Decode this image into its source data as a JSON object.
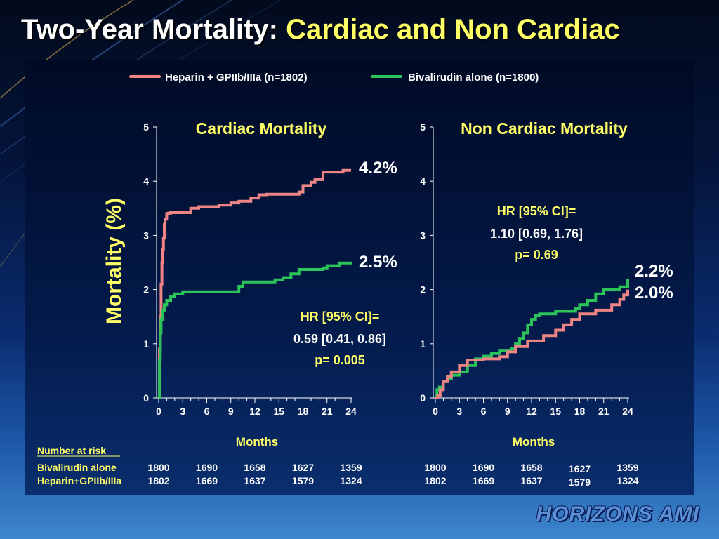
{
  "slide": {
    "title_main": "Two-Year Mortality:",
    "title_accent": "Cardiac and Non Cardiac",
    "logo": "HORIZONS AMI"
  },
  "colors": {
    "heparin": "#ee8484",
    "bivalirudin": "#2cc45a",
    "accent_text": "#ffff66",
    "axis": "#ffffff"
  },
  "legend": [
    {
      "label": "Heparin + GPIIb/IIIa (n=1802)",
      "color": "#ee8484"
    },
    {
      "label": "Bivalirudin alone (n=1800)",
      "color": "#2cc45a"
    }
  ],
  "y_axis_label": "Mortality (%)",
  "x_axis_label": "Months",
  "risk_table": {
    "title": "Number at risk",
    "row_labels": [
      "Bivalirudin alone",
      "Heparin+GPIIb/IIIa"
    ]
  },
  "chart_data": [
    {
      "type": "line",
      "step": true,
      "title": "Cardiac Mortality",
      "xlabel": "Months",
      "ylabel": "Mortality (%)",
      "xlim": [
        0,
        24
      ],
      "ylim": [
        0,
        5
      ],
      "xticks": [
        0,
        3,
        6,
        9,
        12,
        15,
        18,
        21,
        24
      ],
      "yticks": [
        0,
        1,
        2,
        3,
        4,
        5
      ],
      "series": [
        {
          "name": "Heparin + GPIIb/IIIa (n=1802)",
          "color": "#ee8484",
          "end_label": "4.2%",
          "x": [
            0,
            0.1,
            0.2,
            0.3,
            0.4,
            0.5,
            0.6,
            0.7,
            0.8,
            1.0,
            1.2,
            1.5,
            2.0,
            3.0,
            4.0,
            5.0,
            7.5,
            9.0,
            10.0,
            11.5,
            12.5,
            13.5,
            17.5,
            18.0,
            19.0,
            19.5,
            20.5,
            23.0,
            24.0
          ],
          "y": [
            0,
            0.9,
            1.5,
            2.1,
            2.5,
            2.75,
            2.95,
            3.2,
            3.3,
            3.4,
            3.41,
            3.42,
            3.42,
            3.42,
            3.5,
            3.53,
            3.56,
            3.6,
            3.63,
            3.69,
            3.75,
            3.76,
            3.8,
            3.92,
            3.98,
            4.03,
            4.17,
            4.2,
            4.2
          ]
        },
        {
          "name": "Bivalirudin alone (n=1800)",
          "color": "#2cc45a",
          "end_label": "2.5%",
          "x": [
            0,
            0.1,
            0.2,
            0.3,
            0.5,
            0.7,
            1.0,
            1.5,
            2.0,
            3.0,
            10.0,
            10.5,
            14.5,
            15.5,
            16.5,
            17.5,
            20.5,
            21.0,
            22.5,
            24.0
          ],
          "y": [
            0,
            0.7,
            1.2,
            1.45,
            1.62,
            1.72,
            1.8,
            1.87,
            1.92,
            1.96,
            2.06,
            2.14,
            2.18,
            2.22,
            2.29,
            2.37,
            2.4,
            2.44,
            2.49,
            2.5
          ]
        }
      ],
      "annotation": {
        "line1": "HR [95% CI]=",
        "line2": "0.59 [0.41, 0.86]",
        "line3": "p= 0.005"
      },
      "risk_rows": [
        [
          "1800",
          "1690",
          "1658",
          "1627",
          "1359"
        ],
        [
          "1802",
          "1669",
          "1637",
          "1579",
          "1324"
        ]
      ]
    },
    {
      "type": "line",
      "step": true,
      "title": "Non Cardiac Mortality",
      "xlabel": "Months",
      "ylabel": "Mortality (%)",
      "xlim": [
        0,
        24
      ],
      "ylim": [
        0,
        5
      ],
      "xticks": [
        0,
        3,
        6,
        9,
        12,
        15,
        18,
        21,
        24
      ],
      "yticks": [
        0,
        1,
        2,
        3,
        4,
        5
      ],
      "series": [
        {
          "name": "Bivalirudin alone (n=1800)",
          "color": "#2cc45a",
          "end_label": "2.2%",
          "x": [
            0,
            0.2,
            0.5,
            1.0,
            1.5,
            2.0,
            3.0,
            4.0,
            5.0,
            6.0,
            7.0,
            8.0,
            9.5,
            10.0,
            10.5,
            11.0,
            11.5,
            12.0,
            12.5,
            13.0,
            15.0,
            17.5,
            18.0,
            19.0,
            20.0,
            21.0,
            23.0,
            24.0
          ],
          "y": [
            0,
            0.15,
            0.2,
            0.3,
            0.35,
            0.42,
            0.48,
            0.6,
            0.72,
            0.77,
            0.82,
            0.88,
            0.92,
            1.0,
            1.1,
            1.2,
            1.35,
            1.45,
            1.52,
            1.55,
            1.6,
            1.65,
            1.72,
            1.8,
            1.92,
            2.0,
            2.05,
            2.2
          ]
        },
        {
          "name": "Heparin + GPIIb/IIIa (n=1802)",
          "color": "#ee8484",
          "end_label": "2.0%",
          "x": [
            0,
            0.3,
            0.6,
            1.0,
            1.5,
            2.0,
            3.0,
            4.0,
            6.0,
            8.0,
            9.0,
            10.0,
            11.5,
            13.5,
            15.0,
            16.0,
            17.0,
            18.0,
            20.0,
            22.0,
            23.0,
            23.5,
            24.0
          ],
          "y": [
            0,
            0.05,
            0.15,
            0.3,
            0.4,
            0.48,
            0.6,
            0.7,
            0.72,
            0.76,
            0.85,
            0.95,
            1.05,
            1.15,
            1.25,
            1.35,
            1.45,
            1.55,
            1.62,
            1.72,
            1.82,
            1.9,
            2.0
          ]
        }
      ],
      "annotation": {
        "line1": "HR [95% CI]=",
        "line2": "1.10 [0.69, 1.76]",
        "line3": "p= 0.69"
      },
      "risk_rows": [
        [
          "1800",
          "1690",
          "1658",
          "1627",
          "1359"
        ],
        [
          "1802",
          "1669",
          "1637",
          "1579",
          "1324"
        ]
      ]
    }
  ]
}
